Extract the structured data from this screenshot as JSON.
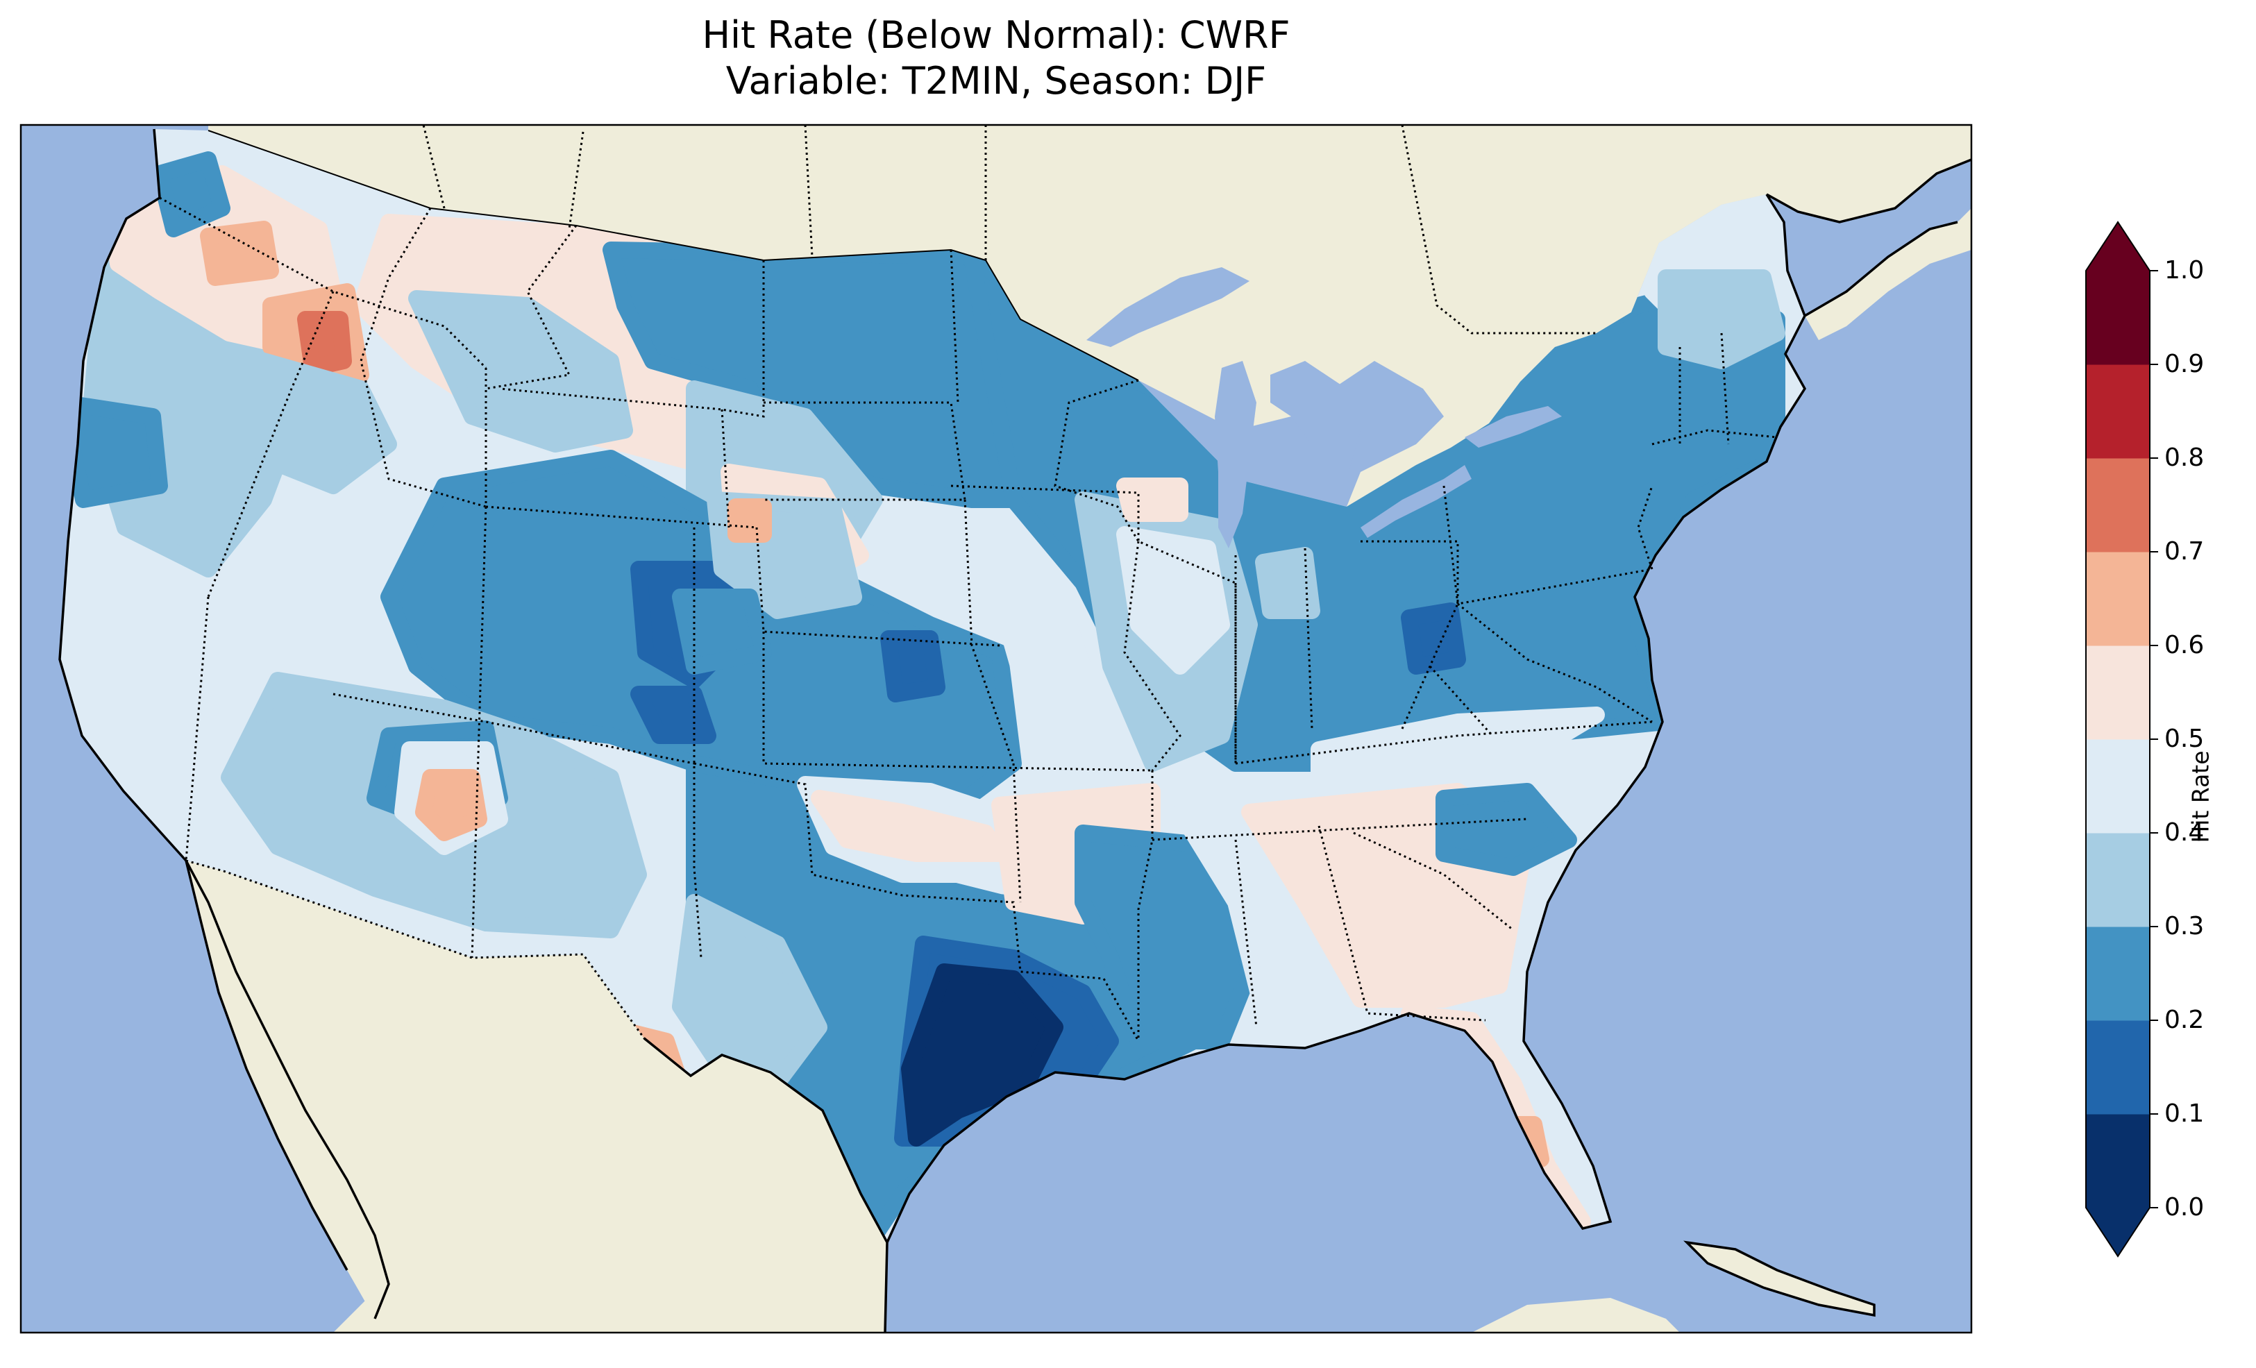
{
  "title": {
    "line1": "Hit Rate (Below Normal): CWRF",
    "line2": "Variable: T2MIN, Season: DJF"
  },
  "colorbar": {
    "label": "Hit Rate",
    "ticks": [
      "0.0",
      "0.1",
      "0.2",
      "0.3",
      "0.4",
      "0.5",
      "0.6",
      "0.7",
      "0.8",
      "0.9",
      "1.0"
    ],
    "bins": [
      {
        "range": "0.0-0.1",
        "color": "#08306b"
      },
      {
        "range": "0.1-0.2",
        "color": "#2166ac"
      },
      {
        "range": "0.2-0.3",
        "color": "#4393c3"
      },
      {
        "range": "0.3-0.4",
        "color": "#a6cde3"
      },
      {
        "range": "0.4-0.5",
        "color": "#deebf5"
      },
      {
        "range": "0.5-0.6",
        "color": "#f7e4dc"
      },
      {
        "range": "0.6-0.7",
        "color": "#f4b596"
      },
      {
        "range": "0.7-0.8",
        "color": "#de725b"
      },
      {
        "range": "0.8-0.9",
        "color": "#b5212c"
      },
      {
        "range": "0.9-1.0",
        "color": "#67001f"
      }
    ],
    "extend": "both"
  },
  "map": {
    "ocean_color": "#98b5e0",
    "land_color": "#efedda",
    "coastline_color": "#000000",
    "state_border_style": "dotted"
  }
}
